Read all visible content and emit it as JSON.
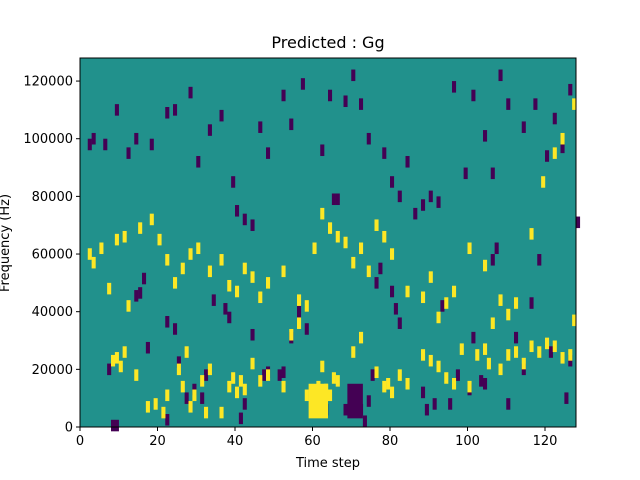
{
  "chart_data": {
    "type": "heatmap",
    "title": "Predicted : Gg",
    "xlabel": "Time step",
    "ylabel": "Frequency (Hz)",
    "xlim": [
      0,
      128
    ],
    "ylim": [
      0,
      128000
    ],
    "x_ticks": [
      0,
      20,
      40,
      60,
      80,
      100,
      120
    ],
    "y_ticks": [
      0,
      20000,
      40000,
      60000,
      80000,
      100000,
      120000
    ],
    "y_tick_labels": [
      "0",
      "20000",
      "40000",
      "60000",
      "80000",
      "100000",
      "120000"
    ],
    "grid": false,
    "colormap": "viridis (3 levels)",
    "colors": {
      "background": "#21918c",
      "low": "#440154",
      "high": "#fde725",
      "axis": "#000000"
    },
    "values": {
      "background": 0,
      "low": -1,
      "high": 1
    },
    "cells_note_bin_height_hz": 1000,
    "low_cells": [
      [
        8,
        0.5
      ],
      [
        9,
        0.5
      ],
      [
        14,
        45.5
      ],
      [
        16,
        51.5
      ],
      [
        15,
        46.5
      ],
      [
        17,
        27.5
      ],
      [
        22,
        2.5
      ],
      [
        22,
        36.5
      ],
      [
        24,
        34
      ],
      [
        25,
        22.5
      ],
      [
        27,
        10
      ],
      [
        29,
        13
      ],
      [
        31,
        10
      ],
      [
        32,
        18
      ],
      [
        34,
        44
      ],
      [
        37,
        41
      ],
      [
        38,
        38
      ],
      [
        41,
        3
      ],
      [
        42,
        8
      ],
      [
        44,
        32
      ],
      [
        47,
        18
      ],
      [
        48,
        19
      ],
      [
        51,
        18
      ],
      [
        52,
        19
      ],
      [
        54,
        31
      ],
      [
        56,
        40
      ],
      [
        58,
        34
      ],
      [
        63,
        6
      ],
      [
        65,
        79
      ],
      [
        66,
        79
      ],
      [
        68,
        6
      ],
      [
        69,
        6
      ],
      [
        70,
        8
      ],
      [
        71,
        11
      ],
      [
        72,
        6
      ],
      [
        73,
        2
      ],
      [
        74,
        9
      ],
      [
        75,
        18
      ],
      [
        76,
        50
      ],
      [
        77,
        55
      ],
      [
        80,
        47
      ],
      [
        81,
        41
      ],
      [
        82,
        36
      ],
      [
        88,
        12
      ],
      [
        89,
        6
      ],
      [
        91,
        8
      ],
      [
        93,
        42
      ],
      [
        95,
        8
      ],
      [
        97,
        18
      ],
      [
        100,
        13
      ],
      [
        101,
        31
      ],
      [
        103,
        16
      ],
      [
        104,
        15
      ],
      [
        106,
        58
      ],
      [
        107,
        62
      ],
      [
        110,
        8
      ],
      [
        112,
        31
      ],
      [
        114,
        20
      ],
      [
        116,
        43
      ],
      [
        118,
        58
      ],
      [
        121,
        26
      ],
      [
        125,
        10
      ],
      [
        126,
        23
      ],
      [
        2,
        98
      ],
      [
        3,
        100
      ],
      [
        6,
        98
      ],
      [
        7,
        20
      ],
      [
        9,
        110
      ],
      [
        12,
        95
      ],
      [
        14,
        100
      ],
      [
        18,
        98
      ],
      [
        22,
        109
      ],
      [
        24,
        110
      ],
      [
        28,
        116
      ],
      [
        30,
        92
      ],
      [
        33,
        103
      ],
      [
        36,
        108
      ],
      [
        39,
        85
      ],
      [
        40,
        75
      ],
      [
        42,
        72
      ],
      [
        44,
        70
      ],
      [
        46,
        104
      ],
      [
        48,
        95
      ],
      [
        52,
        115
      ],
      [
        54,
        105
      ],
      [
        57,
        119
      ],
      [
        62,
        96
      ],
      [
        64,
        115
      ],
      [
        68,
        113
      ],
      [
        70,
        122
      ],
      [
        72,
        112
      ],
      [
        74,
        100
      ],
      [
        78,
        95
      ],
      [
        80,
        85
      ],
      [
        82,
        80
      ],
      [
        84,
        92
      ],
      [
        86,
        74
      ],
      [
        88,
        77
      ],
      [
        90,
        80
      ],
      [
        92,
        78
      ],
      [
        96,
        118
      ],
      [
        99,
        88
      ],
      [
        101,
        115
      ],
      [
        104,
        101
      ],
      [
        106,
        88
      ],
      [
        108,
        122
      ],
      [
        110,
        112
      ],
      [
        114,
        104
      ],
      [
        117,
        112
      ],
      [
        120,
        94
      ],
      [
        122,
        107
      ],
      [
        124,
        97
      ],
      [
        126,
        117
      ],
      [
        128,
        71
      ]
    ],
    "high_cells": [
      [
        8,
        23
      ],
      [
        9,
        24
      ],
      [
        10,
        21
      ],
      [
        11,
        26
      ],
      [
        14,
        18
      ],
      [
        17,
        7
      ],
      [
        19,
        8
      ],
      [
        21,
        5
      ],
      [
        22,
        11
      ],
      [
        25,
        20
      ],
      [
        26,
        14
      ],
      [
        27,
        26
      ],
      [
        28,
        7
      ],
      [
        29,
        11
      ],
      [
        31,
        16
      ],
      [
        32,
        5
      ],
      [
        33,
        20
      ],
      [
        36,
        5
      ],
      [
        38,
        14
      ],
      [
        39,
        17
      ],
      [
        40,
        12
      ],
      [
        41,
        16
      ],
      [
        42,
        13
      ],
      [
        44,
        22
      ],
      [
        46,
        16
      ],
      [
        48,
        18
      ],
      [
        52,
        14
      ],
      [
        54,
        32
      ],
      [
        56,
        36
      ],
      [
        58,
        11
      ],
      [
        60,
        12
      ],
      [
        61,
        14
      ],
      [
        62,
        21
      ],
      [
        63,
        13
      ],
      [
        64,
        11
      ],
      [
        65,
        17
      ],
      [
        66,
        16
      ],
      [
        70,
        26
      ],
      [
        72,
        31
      ],
      [
        76,
        19
      ],
      [
        78,
        14
      ],
      [
        79,
        15
      ],
      [
        80,
        12
      ],
      [
        82,
        18
      ],
      [
        84,
        15
      ],
      [
        88,
        25
      ],
      [
        90,
        23
      ],
      [
        92,
        21
      ],
      [
        94,
        17
      ],
      [
        96,
        15
      ],
      [
        98,
        27
      ],
      [
        100,
        14
      ],
      [
        102,
        25
      ],
      [
        104,
        27
      ],
      [
        105,
        22
      ],
      [
        108,
        20
      ],
      [
        110,
        25
      ],
      [
        112,
        26
      ],
      [
        114,
        22
      ],
      [
        116,
        28
      ],
      [
        118,
        26
      ],
      [
        120,
        29
      ],
      [
        122,
        28
      ],
      [
        124,
        24
      ],
      [
        126,
        25
      ],
      [
        127,
        37
      ],
      [
        2,
        60
      ],
      [
        3,
        57
      ],
      [
        5,
        62
      ],
      [
        7,
        48
      ],
      [
        9,
        65
      ],
      [
        11,
        66
      ],
      [
        12,
        42
      ],
      [
        15,
        69
      ],
      [
        18,
        72
      ],
      [
        20,
        65
      ],
      [
        22,
        58
      ],
      [
        24,
        50
      ],
      [
        26,
        55
      ],
      [
        28,
        60
      ],
      [
        30,
        62
      ],
      [
        33,
        54
      ],
      [
        36,
        58
      ],
      [
        38,
        49
      ],
      [
        40,
        47
      ],
      [
        42,
        55
      ],
      [
        44,
        52
      ],
      [
        46,
        45
      ],
      [
        48,
        50
      ],
      [
        52,
        54
      ],
      [
        56,
        44
      ],
      [
        58,
        42
      ],
      [
        60,
        62
      ],
      [
        62,
        74
      ],
      [
        64,
        69
      ],
      [
        66,
        66
      ],
      [
        68,
        64
      ],
      [
        70,
        57
      ],
      [
        72,
        62
      ],
      [
        74,
        54
      ],
      [
        76,
        70
      ],
      [
        78,
        66
      ],
      [
        80,
        60
      ],
      [
        84,
        47
      ],
      [
        88,
        45
      ],
      [
        90,
        52
      ],
      [
        92,
        38
      ],
      [
        94,
        43
      ],
      [
        96,
        47
      ],
      [
        100,
        62
      ],
      [
        104,
        56
      ],
      [
        106,
        36
      ],
      [
        108,
        44
      ],
      [
        110,
        39
      ],
      [
        112,
        43
      ],
      [
        116,
        67
      ],
      [
        119,
        85
      ],
      [
        122,
        95
      ],
      [
        124,
        100
      ],
      [
        127,
        112
      ]
    ],
    "high_blob": {
      "x": [
        59,
        64
      ],
      "y": [
        3000,
        15000
      ]
    },
    "low_blob": {
      "x": [
        69,
        73
      ],
      "y": [
        3000,
        15000
      ]
    }
  }
}
